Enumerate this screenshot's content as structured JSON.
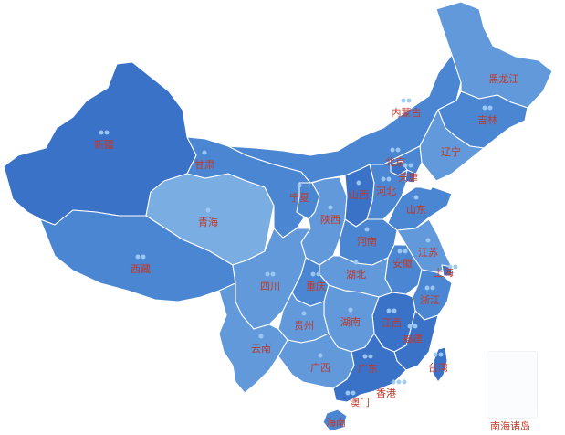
{
  "colors": {
    "level1": "#3a72c8",
    "level2": "#4a86d2",
    "level3": "#6199da",
    "level4": "#7aaee2",
    "label": "#c0392b",
    "dot": "#9ec9f2"
  },
  "provinces": [
    {
      "key": "heilongjiang",
      "name": "黑龙江",
      "dots": 0
    },
    {
      "key": "jilin",
      "name": "吉林",
      "dots": 2
    },
    {
      "key": "liaoning",
      "name": "辽宁",
      "dots": 0
    },
    {
      "key": "neimenggu",
      "name": "内蒙古",
      "dots": 2
    },
    {
      "key": "xinjiang",
      "name": "新疆",
      "dots": 2
    },
    {
      "key": "xizang",
      "name": "西藏",
      "dots": 2
    },
    {
      "key": "qinghai",
      "name": "青海",
      "dots": 1
    },
    {
      "key": "gansu",
      "name": "甘肃",
      "dots": 1
    },
    {
      "key": "ningxia",
      "name": "宁夏",
      "dots": 1
    },
    {
      "key": "shaanxi",
      "name": "陕西",
      "dots": 1
    },
    {
      "key": "shanxi",
      "name": "山西",
      "dots": 1
    },
    {
      "key": "hebei",
      "name": "河北",
      "dots": 2
    },
    {
      "key": "beijing",
      "name": "北京",
      "dots": 2
    },
    {
      "key": "tianjin",
      "name": "天津",
      "dots": 2
    },
    {
      "key": "shandong",
      "name": "山东",
      "dots": 1
    },
    {
      "key": "henan",
      "name": "河南",
      "dots": 1
    },
    {
      "key": "jiangsu",
      "name": "江苏",
      "dots": 1
    },
    {
      "key": "shanghai",
      "name": "上海",
      "dots": 2
    },
    {
      "key": "anhui",
      "name": "安徽",
      "dots": 2
    },
    {
      "key": "hubei",
      "name": "湖北",
      "dots": 1
    },
    {
      "key": "sichuan",
      "name": "四川",
      "dots": 2
    },
    {
      "key": "chongqing",
      "name": "重庆",
      "dots": 2
    },
    {
      "key": "zhejiang",
      "name": "浙江",
      "dots": 2
    },
    {
      "key": "jiangxi",
      "name": "江西",
      "dots": 2
    },
    {
      "key": "hunan",
      "name": "湖南",
      "dots": 1
    },
    {
      "key": "guizhou",
      "name": "贵州",
      "dots": 1
    },
    {
      "key": "yunnan",
      "name": "云南",
      "dots": 1
    },
    {
      "key": "fujian",
      "name": "福建",
      "dots": 2
    },
    {
      "key": "guangxi",
      "name": "广西",
      "dots": 1
    },
    {
      "key": "guangdong",
      "name": "广东",
      "dots": 2
    },
    {
      "key": "taiwan",
      "name": "台湾",
      "dots": 2
    },
    {
      "key": "xianggang",
      "name": "香港",
      "dots": 3
    },
    {
      "key": "aomen",
      "name": "澳门",
      "dots": 2
    },
    {
      "key": "hainan",
      "name": "海南",
      "dots": 0
    }
  ],
  "inset": {
    "label": "南海诸岛"
  }
}
